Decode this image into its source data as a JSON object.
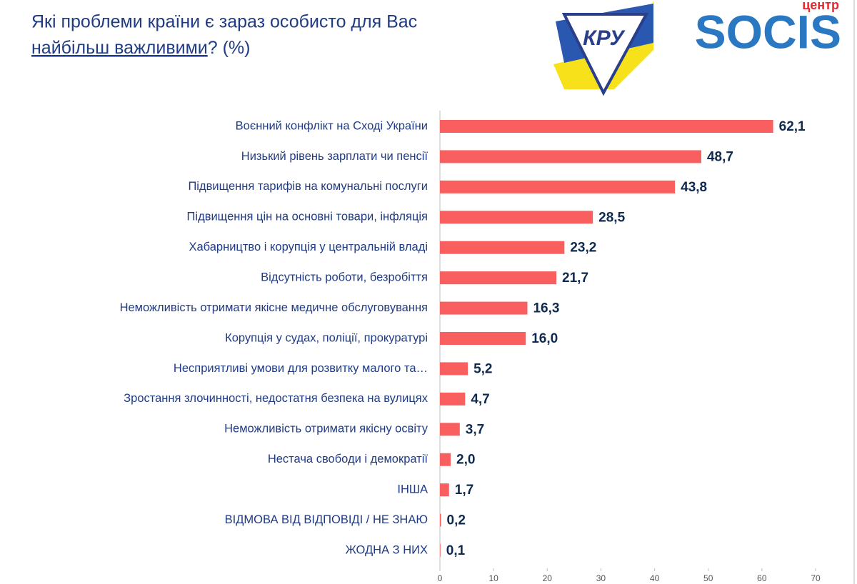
{
  "chart_data": {
    "type": "bar",
    "orientation": "horizontal",
    "title": "Які проблеми країни є зараз особисто для Вас",
    "title_emphasis": "найбільш важливими",
    "title_suffix": "? (%)",
    "categories": [
      "Воєнний конфлікт на Сході України",
      "Низький рівень зарплати чи пенсії",
      "Підвищення тарифів на комунальні послуги",
      "Підвищення цін на основні товари, інфляція",
      "Хабарництво і корупція у центральній владі",
      "Відсутність роботи, безробіття",
      "Неможливість отримати якісне медичне обслуговування",
      "Корупція у судах, поліції, прокуратурі",
      "Несприятливі умови для розвитку малого та…",
      "Зростання злочинності, недостатня безпека на вулицях",
      "Неможливість отримати якісну освіту",
      "Нестача свободи і демократії",
      "ІНША",
      "ВІДМОВА ВІД ВІДПОВІДІ / НЕ ЗНАЮ",
      "ЖОДНА З НИХ"
    ],
    "values": [
      62.1,
      48.7,
      43.8,
      28.5,
      23.2,
      21.7,
      16.3,
      16.0,
      5.2,
      4.7,
      3.7,
      2.0,
      1.7,
      0.2,
      0.1
    ],
    "value_labels": [
      "62,1",
      "48,7",
      "43,8",
      "28,5",
      "23,2",
      "21,7",
      "16,3",
      "16,0",
      "5,2",
      "4,7",
      "3,7",
      "2,0",
      "1,7",
      "0,2",
      "0,1"
    ],
    "color": "#fa5f5f",
    "xlim": [
      0,
      70
    ],
    "xticks": [
      0,
      10,
      20,
      30,
      40,
      50,
      60,
      70
    ]
  },
  "logo": {
    "badge": "КРУ",
    "center": "центр",
    "name": "SOCIS"
  }
}
